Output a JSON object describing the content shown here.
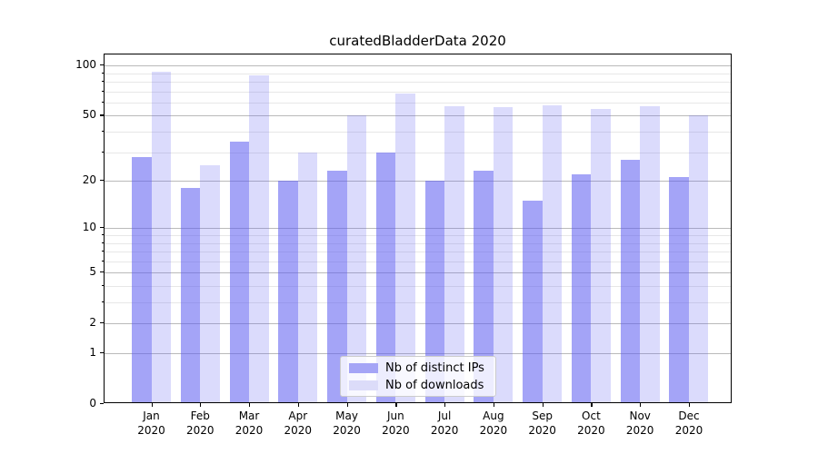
{
  "title": "curatedBladderData 2020",
  "chart_data": {
    "type": "bar",
    "title": "curatedBladderData 2020",
    "categories": [
      "Jan 2020",
      "Feb 2020",
      "Mar 2020",
      "Apr 2020",
      "May 2020",
      "Jun 2020",
      "Jul 2020",
      "Aug 2020",
      "Sep 2020",
      "Oct 2020",
      "Nov 2020",
      "Dec 2020"
    ],
    "series": [
      {
        "name": "Nb of distinct IPs",
        "color": "#a5a5f6",
        "fill": "rgba(90,90,240,0.55)",
        "values": [
          28,
          18,
          35,
          20,
          23,
          30,
          20,
          23,
          15,
          22,
          27,
          21
        ]
      },
      {
        "name": "Nb of downloads",
        "color": "#dcdcf9",
        "fill": "rgba(90,90,240,0.22)",
        "values": [
          92,
          25,
          87,
          30,
          50,
          68,
          57,
          56,
          58,
          55,
          57,
          50
        ]
      }
    ],
    "yscale": "log1p",
    "ylim": [
      0,
      117
    ],
    "y_major_ticks": [
      0,
      1,
      2,
      5,
      10,
      20,
      50,
      100
    ],
    "y_minor_ticks": [
      3,
      4,
      6,
      7,
      8,
      9,
      30,
      40,
      60,
      70,
      80,
      90
    ],
    "xlabel": "",
    "ylabel": "",
    "grid": "horizontal",
    "legend_position": "lower center"
  },
  "legend": {
    "items": [
      "Nb of distinct IPs",
      "Nb of downloads"
    ]
  },
  "colors": {
    "bar_distinct_ips": "#a5a5f6",
    "bar_downloads": "#dcdcf9",
    "grid_major": "#bababa",
    "grid_minor": "#e7e7e7",
    "spine": "#000000",
    "legend_border": "#cccccc",
    "background": "#ffffff",
    "text": "#000000"
  }
}
